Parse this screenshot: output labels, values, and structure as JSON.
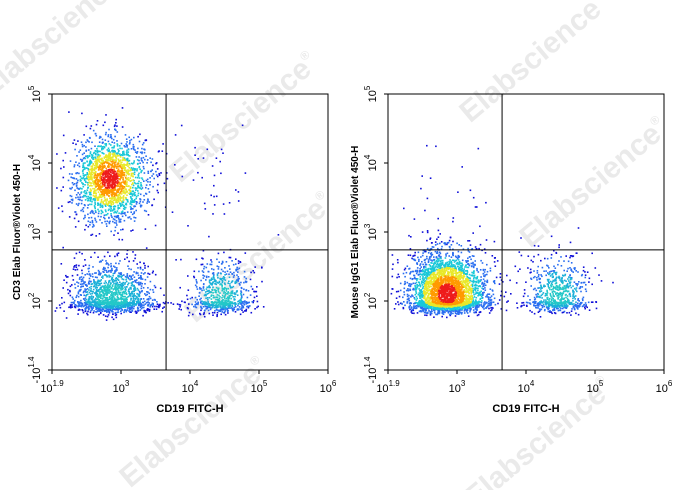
{
  "watermark": {
    "text": "Elabscience",
    "mark": "®"
  },
  "chart_data": [
    {
      "type": "scatter",
      "xlabel": "CD19 FITC-H",
      "ylabel": "CD3 Elab Fluor®Violet 450-H",
      "x_scale": "biexponential",
      "y_scale": "biexponential",
      "x_ticks": [
        {
          "base": "10",
          "exp": "1.9",
          "value": 79.4,
          "neg": false
        },
        {
          "base": "10",
          "exp": "3",
          "value": 1000,
          "neg": false
        },
        {
          "base": "10",
          "exp": "4",
          "value": 10000,
          "neg": false
        },
        {
          "base": "10",
          "exp": "5",
          "value": 100000,
          "neg": false
        },
        {
          "base": "10",
          "exp": "6",
          "value": 1000000,
          "neg": false
        }
      ],
      "y_ticks": [
        {
          "base": "10",
          "exp": "1.4",
          "value": -25.1,
          "neg": true
        },
        {
          "base": "10",
          "exp": "2",
          "value": 100,
          "neg": false
        },
        {
          "base": "10",
          "exp": "3",
          "value": 1000,
          "neg": false
        },
        {
          "base": "10",
          "exp": "4",
          "value": 10000,
          "neg": false
        },
        {
          "base": "10",
          "exp": "5",
          "value": 100000,
          "neg": false
        }
      ],
      "gate": {
        "x": 4500,
        "y": 550
      },
      "populations": [
        {
          "x": 650,
          "y": 6000,
          "x_spread": 0.28,
          "y_spread": 0.3,
          "count": 1900,
          "peak": "red"
        },
        {
          "x": 700,
          "y": 110,
          "x_spread": 0.32,
          "y_spread": 0.28,
          "count": 1500,
          "peak": "cyan"
        },
        {
          "x": 28000,
          "y": 110,
          "x_spread": 0.22,
          "y_spread": 0.28,
          "count": 700,
          "peak": "cyan"
        },
        {
          "x": 15000,
          "y": 6000,
          "x_spread": 0.35,
          "y_spread": 0.35,
          "count": 40,
          "peak": "blue"
        }
      ]
    },
    {
      "type": "scatter",
      "xlabel": "CD19 FITC-H",
      "ylabel": "Mouse IgG1 Elab Fluor®Violet 450-H",
      "x_scale": "biexponential",
      "y_scale": "biexponential",
      "x_ticks": [
        {
          "base": "10",
          "exp": "1.9",
          "value": 79.4,
          "neg": false
        },
        {
          "base": "10",
          "exp": "3",
          "value": 1000,
          "neg": false
        },
        {
          "base": "10",
          "exp": "4",
          "value": 10000,
          "neg": false
        },
        {
          "base": "10",
          "exp": "5",
          "value": 100000,
          "neg": false
        },
        {
          "base": "10",
          "exp": "6",
          "value": 1000000,
          "neg": false
        }
      ],
      "y_ticks": [
        {
          "base": "10",
          "exp": "1.4",
          "value": -25.1,
          "neg": true
        },
        {
          "base": "10",
          "exp": "2",
          "value": 100,
          "neg": false
        },
        {
          "base": "10",
          "exp": "3",
          "value": 1000,
          "neg": false
        },
        {
          "base": "10",
          "exp": "4",
          "value": 10000,
          "neg": false
        },
        {
          "base": "10",
          "exp": "5",
          "value": 100000,
          "neg": false
        }
      ],
      "gate": {
        "x": 4500,
        "y": 550
      },
      "populations": [
        {
          "x": 680,
          "y": 130,
          "x_spread": 0.3,
          "y_spread": 0.3,
          "count": 3200,
          "peak": "red"
        },
        {
          "x": 28000,
          "y": 120,
          "x_spread": 0.22,
          "y_spread": 0.28,
          "count": 700,
          "peak": "cyan"
        },
        {
          "x": 800,
          "y": 2500,
          "x_spread": 0.4,
          "y_spread": 0.5,
          "count": 25,
          "peak": "blue"
        }
      ]
    }
  ]
}
